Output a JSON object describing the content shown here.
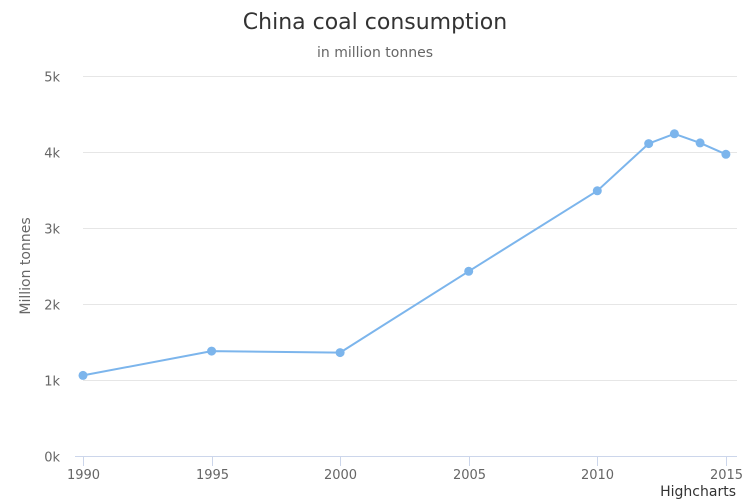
{
  "chart_data": {
    "type": "line",
    "title": "China coal consumption",
    "subtitle": "in million tonnes",
    "xlabel": "",
    "ylabel": "Million tonnes",
    "xlim": [
      1990,
      2015.2
    ],
    "ylim": [
      0,
      5000
    ],
    "x_ticks": [
      1990,
      1995,
      2000,
      2005,
      2010,
      2015
    ],
    "x_tick_labels": [
      "1990",
      "1995",
      "2000",
      "2005",
      "2010",
      "2015"
    ],
    "y_ticks": [
      0,
      1000,
      2000,
      3000,
      4000,
      5000
    ],
    "y_tick_labels": [
      "0k",
      "1k",
      "2k",
      "3k",
      "4k",
      "5k"
    ],
    "grid": true,
    "legend": "none",
    "series": [
      {
        "color": "#7cb5ec",
        "x": [
          1990,
          1995,
          2000,
          2005,
          2010,
          2012,
          2013,
          2014,
          2015
        ],
        "values": [
          1060,
          1380,
          1360,
          2430,
          3490,
          4110,
          4240,
          4120,
          3970
        ]
      }
    ]
  },
  "credits": "Highcharts"
}
